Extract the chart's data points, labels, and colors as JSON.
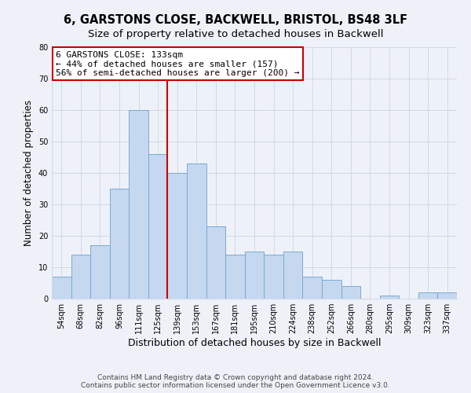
{
  "title": "6, GARSTONS CLOSE, BACKWELL, BRISTOL, BS48 3LF",
  "subtitle": "Size of property relative to detached houses in Backwell",
  "xlabel": "Distribution of detached houses by size in Backwell",
  "ylabel": "Number of detached properties",
  "bar_labels": [
    "54sqm",
    "68sqm",
    "82sqm",
    "96sqm",
    "111sqm",
    "125sqm",
    "139sqm",
    "153sqm",
    "167sqm",
    "181sqm",
    "195sqm",
    "210sqm",
    "224sqm",
    "238sqm",
    "252sqm",
    "266sqm",
    "280sqm",
    "295sqm",
    "309sqm",
    "323sqm",
    "337sqm"
  ],
  "bar_values": [
    7,
    14,
    17,
    35,
    60,
    46,
    40,
    43,
    23,
    14,
    15,
    14,
    15,
    7,
    6,
    4,
    0,
    1,
    0,
    2,
    2
  ],
  "bar_color": "#c5d8f0",
  "bar_edge_color": "#7aaad0",
  "vline_x": 5.5,
  "vline_color": "#cc0000",
  "annotation_box_text": "6 GARSTONS CLOSE: 133sqm\n← 44% of detached houses are smaller (157)\n56% of semi-detached houses are larger (200) →",
  "annotation_box_edgecolor": "#cc0000",
  "annotation_box_facecolor": "#ffffff",
  "ylim": [
    0,
    80
  ],
  "yticks": [
    0,
    10,
    20,
    30,
    40,
    50,
    60,
    70,
    80
  ],
  "footer_line1": "Contains HM Land Registry data © Crown copyright and database right 2024.",
  "footer_line2": "Contains public sector information licensed under the Open Government Licence v3.0.",
  "title_fontsize": 10.5,
  "subtitle_fontsize": 9.5,
  "xlabel_fontsize": 9,
  "ylabel_fontsize": 8.5,
  "tick_fontsize": 7,
  "annotation_fontsize": 8,
  "footer_fontsize": 6.5,
  "background_color": "#eef2f8",
  "plot_background_color": "#eef2f8",
  "grid_color": "#d0d8e8"
}
